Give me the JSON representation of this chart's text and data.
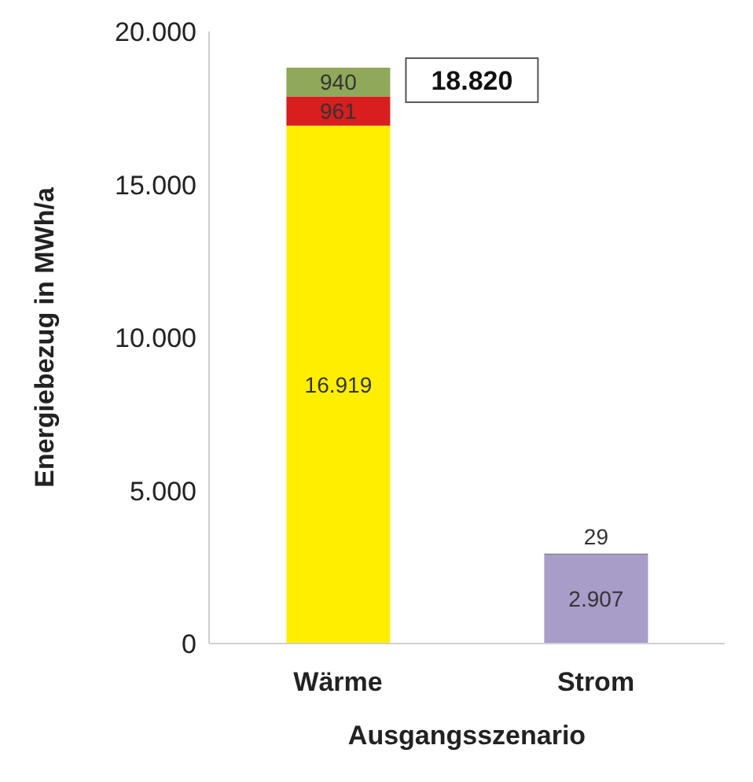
{
  "chart_data": {
    "type": "bar",
    "stacked": true,
    "categories": [
      "Wärme",
      "Strom"
    ],
    "xlabel": "Ausgangsszenario",
    "ylabel": "Energiebezug in MWh/a",
    "series": [
      {
        "color": "#ffee00",
        "values": [
          16919,
          null
        ],
        "value_labels": [
          "16.919",
          null
        ]
      },
      {
        "color": "#a89cc8",
        "values": [
          null,
          2907
        ],
        "value_labels": [
          null,
          "2.907"
        ]
      },
      {
        "color": "#d81e1e",
        "values": [
          961,
          null
        ],
        "value_labels": [
          "961",
          null
        ]
      },
      {
        "color": "#7f7f7f",
        "values": [
          null,
          29
        ],
        "value_labels": [
          null,
          "29"
        ]
      },
      {
        "color": "#8fa85a",
        "values": [
          940,
          null
        ],
        "value_labels": [
          "940",
          null
        ]
      }
    ],
    "totals": [
      "18.820",
      null
    ],
    "ylim": [
      0,
      20000
    ],
    "yticks": [
      {
        "value": 0,
        "label": "0"
      },
      {
        "value": 5000,
        "label": "5.000"
      },
      {
        "value": 10000,
        "label": "10.000"
      },
      {
        "value": 15000,
        "label": "15.000"
      },
      {
        "value": 20000,
        "label": "20.000"
      }
    ]
  }
}
